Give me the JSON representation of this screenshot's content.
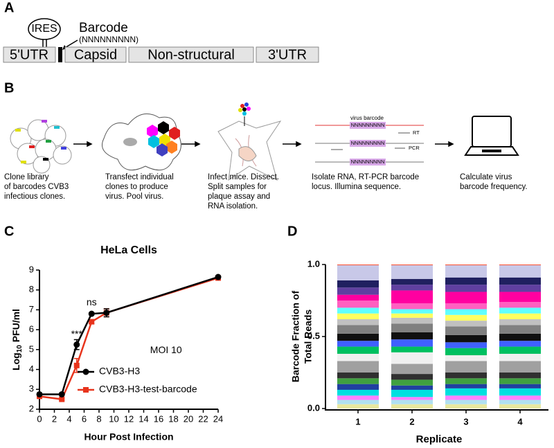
{
  "panel_a": {
    "letter": "A",
    "ires": "IRES",
    "barcode": "Barcode",
    "barcode_seq": "(NNNNNNNNN)",
    "segments": [
      "5'UTR",
      "Capsid",
      "Non-structural",
      "3'UTR"
    ]
  },
  "panel_b": {
    "letter": "B",
    "steps": [
      [
        "Clone library",
        "of barcodes CVB3",
        "infectious clones."
      ],
      [
        "Transfect individual",
        "clones to produce",
        "virus. Pool virus."
      ],
      [
        "Infect mice. Dissect.",
        "Split samples for",
        "plaque assay and",
        "RNA isolation."
      ],
      [
        "Isolate RNA, RT-PCR barcode",
        "locus. Illumina sequence."
      ],
      [
        "Calculate virus",
        "barcode frequency."
      ]
    ],
    "virus_barcode": "virus barcode",
    "seq": "NNNNNNNNN",
    "rt": "RT",
    "pcr": "PCR"
  },
  "chart_data": [
    {
      "type": "line",
      "letter": "C",
      "title": "HeLa Cells",
      "xlabel": "Hour Post Infection",
      "ylabel": [
        "Log",
        "10",
        " PFU/ml"
      ],
      "xlim": [
        0,
        24
      ],
      "xticks": [
        0,
        2,
        4,
        6,
        8,
        10,
        12,
        14,
        16,
        18,
        20,
        22,
        24
      ],
      "ylim": [
        2,
        9
      ],
      "yticks": [
        2,
        3,
        4,
        5,
        6,
        7,
        8,
        9
      ],
      "series": [
        {
          "name": "CVB3-H3-test-barcode",
          "color": "#e8341c",
          "marker": "square",
          "x": [
            0,
            3,
            5,
            7,
            9,
            24
          ],
          "values": [
            2.65,
            2.5,
            4.2,
            6.4,
            6.85,
            8.6
          ],
          "errors": [
            0.05,
            0.05,
            0.35,
            0.1,
            0.2,
            0.05
          ]
        },
        {
          "name": "CVB3-H3",
          "color": "#000000",
          "marker": "circle",
          "x": [
            0,
            3,
            5,
            7,
            9,
            24
          ],
          "values": [
            2.75,
            2.75,
            5.25,
            6.8,
            6.85,
            8.65
          ],
          "errors": [
            0.05,
            0.05,
            0.25,
            0.05,
            0.2,
            0.05
          ]
        }
      ],
      "annotations": [
        {
          "text": "***",
          "x": 5,
          "y": 5.75
        },
        {
          "text": "ns",
          "x": 7,
          "y": 7.35
        },
        {
          "text": "MOI 10",
          "x": 17,
          "y": 4.95
        }
      ]
    },
    {
      "type": "stacked_bar",
      "letter": "D",
      "xlabel": "Replicate",
      "ylabel": [
        "Barcode Fraction of",
        "Total Reads"
      ],
      "categories": [
        "1",
        "2",
        "3",
        "4"
      ],
      "ylim": [
        0,
        1
      ],
      "yticks": [
        {
          "value": 0,
          "label": "0.0"
        },
        {
          "value": 0.5,
          "label": "0.5"
        },
        {
          "value": 1,
          "label": "1.0"
        }
      ],
      "series": [
        {
          "color": "#e8e8a0",
          "values": [
            0.03,
            0.03,
            0.03,
            0.03
          ]
        },
        {
          "color": "#b0e0f0",
          "values": [
            0.03,
            0.03,
            0.03,
            0.03
          ]
        },
        {
          "color": "#ff80ff",
          "values": [
            0.03,
            0.02,
            0.03,
            0.03
          ]
        },
        {
          "color": "#00e0e0",
          "values": [
            0.04,
            0.05,
            0.05,
            0.05
          ]
        },
        {
          "color": "#2040a0",
          "values": [
            0.04,
            0.03,
            0.03,
            0.03
          ]
        },
        {
          "color": "#40a040",
          "values": [
            0.04,
            0.04,
            0.04,
            0.04
          ]
        },
        {
          "color": "#303030",
          "values": [
            0.04,
            0.04,
            0.04,
            0.04
          ]
        },
        {
          "color": "#a0a0a0",
          "values": [
            0.08,
            0.07,
            0.08,
            0.08
          ]
        },
        {
          "color": "#f0f0f0",
          "values": [
            0.05,
            0.08,
            0.04,
            0.05
          ]
        },
        {
          "color": "#00c060",
          "values": [
            0.05,
            0.04,
            0.05,
            0.05
          ]
        },
        {
          "color": "#4060ff",
          "values": [
            0.04,
            0.05,
            0.04,
            0.04
          ]
        },
        {
          "color": "#101010",
          "values": [
            0.05,
            0.05,
            0.05,
            0.05
          ]
        },
        {
          "color": "#808080",
          "values": [
            0.06,
            0.06,
            0.06,
            0.06
          ]
        },
        {
          "color": "#c0c0c0",
          "values": [
            0.04,
            0.04,
            0.04,
            0.04
          ]
        },
        {
          "color": "#ffff60",
          "values": [
            0.04,
            0.03,
            0.04,
            0.04
          ]
        },
        {
          "color": "#60ffff",
          "values": [
            0.04,
            0.03,
            0.04,
            0.04
          ]
        },
        {
          "color": "#ff60c0",
          "values": [
            0.05,
            0.04,
            0.04,
            0.04
          ]
        },
        {
          "color": "#ff00a0",
          "values": [
            0.04,
            0.09,
            0.08,
            0.07
          ]
        },
        {
          "color": "#6040a0",
          "values": [
            0.05,
            0.04,
            0.05,
            0.05
          ]
        },
        {
          "color": "#202060",
          "values": [
            0.05,
            0.04,
            0.05,
            0.05
          ]
        },
        {
          "color": "#c8c8e8",
          "values": [
            0.105,
            0.095,
            0.085,
            0.085
          ]
        },
        {
          "color": "#ff5030",
          "values": [
            0.005,
            0.005,
            0.005,
            0.005
          ]
        }
      ]
    }
  ]
}
